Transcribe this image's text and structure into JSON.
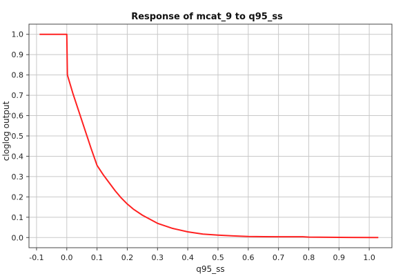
{
  "chart_data": {
    "type": "line",
    "title": "Response of mcat_9 to q95_ss",
    "xlabel": "q95_ss",
    "ylabel": "cloglog output",
    "xlim": [
      -0.125,
      1.075
    ],
    "ylim": [
      -0.05,
      1.05
    ],
    "xticks": [
      -0.1,
      0.0,
      0.1,
      0.2,
      0.3,
      0.4,
      0.5,
      0.6,
      0.7,
      0.8,
      0.9,
      1.0
    ],
    "xtick_labels": [
      "-0.1",
      "0.0",
      "0.1",
      "0.2",
      "0.3",
      "0.4",
      "0.5",
      "0.6",
      "0.7",
      "0.8",
      "0.9",
      "1.0"
    ],
    "yticks": [
      0.0,
      0.1,
      0.2,
      0.3,
      0.4,
      0.5,
      0.6,
      0.7,
      0.8,
      0.9,
      1.0
    ],
    "ytick_labels": [
      "0.0",
      "0.1",
      "0.2",
      "0.3",
      "0.4",
      "0.5",
      "0.6",
      "0.7",
      "0.8",
      "0.9",
      "1.0"
    ],
    "grid": true,
    "series": [
      {
        "color": "#ff2020",
        "x": [
          -0.09,
          0.0,
          0.002,
          0.01,
          0.02,
          0.04,
          0.06,
          0.08,
          0.1,
          0.12,
          0.14,
          0.16,
          0.18,
          0.2,
          0.22,
          0.25,
          0.3,
          0.35,
          0.4,
          0.45,
          0.5,
          0.55,
          0.6,
          0.7,
          0.78,
          0.8,
          0.9,
          1.03
        ],
        "y": [
          1.0,
          1.0,
          0.8,
          0.76,
          0.71,
          0.62,
          0.53,
          0.44,
          0.355,
          0.31,
          0.27,
          0.23,
          0.195,
          0.165,
          0.14,
          0.11,
          0.07,
          0.045,
          0.028,
          0.017,
          0.012,
          0.008,
          0.005,
          0.004,
          0.004,
          0.002,
          0.001,
          0.0
        ]
      }
    ]
  }
}
